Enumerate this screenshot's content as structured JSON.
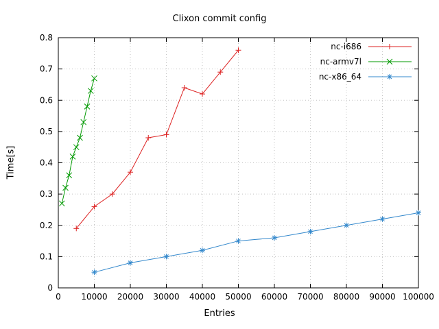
{
  "chart_data": {
    "type": "line",
    "title": "Clixon commit config",
    "xlabel": "Entries",
    "ylabel": "Time[s]",
    "xlim": [
      0,
      100000
    ],
    "ylim": [
      0,
      0.8
    ],
    "x_ticks": [
      "0",
      "10000",
      "20000",
      "30000",
      "40000",
      "50000",
      "60000",
      "70000",
      "80000",
      "90000",
      "100000"
    ],
    "y_ticks": [
      "0",
      "0.1",
      "0.2",
      "0.3",
      "0.4",
      "0.5",
      "0.6",
      "0.7",
      "0.8"
    ],
    "grid": true,
    "grid_color": "#c4c4c4",
    "border_color": "#000000",
    "legend_position": "top-right",
    "series": [
      {
        "name": "nc-i686",
        "color": "#dd2222",
        "marker": "plus",
        "x": [
          5000,
          10000,
          15000,
          20000,
          25000,
          30000,
          35000,
          40000,
          45000,
          50000
        ],
        "y": [
          0.19,
          0.26,
          0.3,
          0.37,
          0.48,
          0.49,
          0.64,
          0.62,
          0.69,
          0.76
        ]
      },
      {
        "name": "nc-armv7l",
        "color": "#009900",
        "marker": "cross",
        "x": [
          1000,
          2000,
          3000,
          4000,
          5000,
          6000,
          7000,
          8000,
          9000,
          10000
        ],
        "y": [
          0.27,
          0.32,
          0.36,
          0.42,
          0.45,
          0.48,
          0.53,
          0.58,
          0.63,
          0.67
        ]
      },
      {
        "name": "nc-x86_64",
        "color": "#3388cc",
        "marker": "asterisk",
        "x": [
          10000,
          20000,
          30000,
          40000,
          50000,
          60000,
          70000,
          80000,
          90000,
          100000
        ],
        "y": [
          0.05,
          0.08,
          0.1,
          0.12,
          0.15,
          0.16,
          0.18,
          0.2,
          0.22,
          0.24
        ]
      }
    ]
  }
}
